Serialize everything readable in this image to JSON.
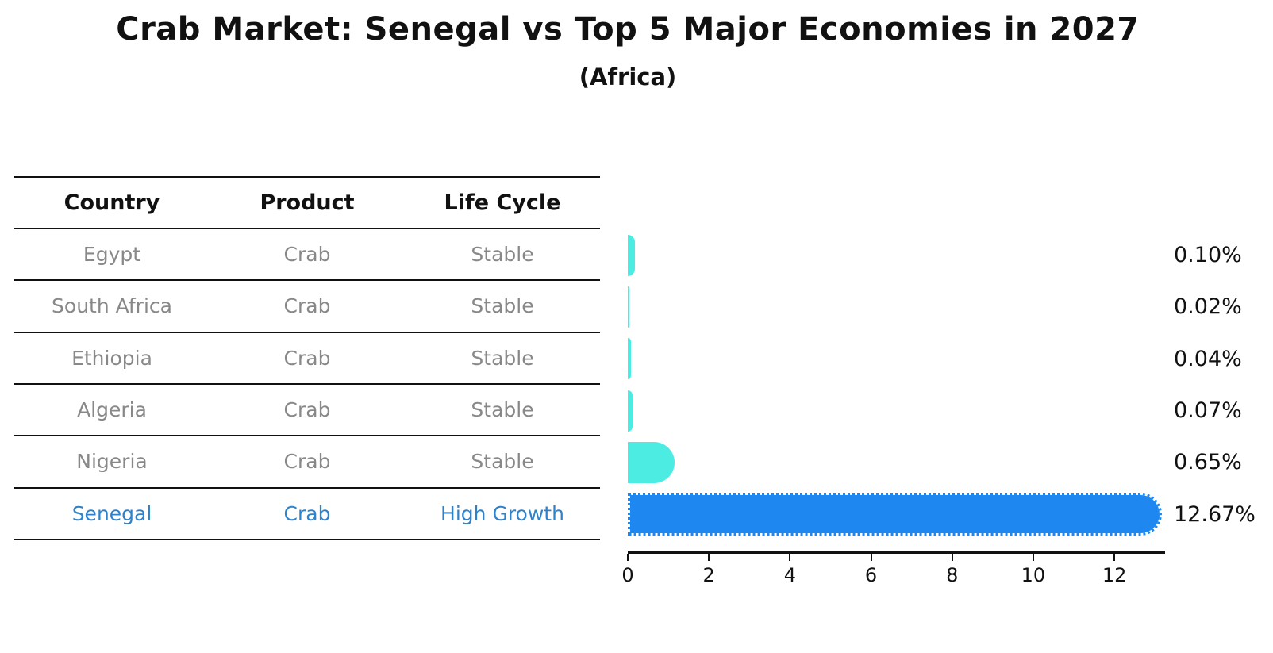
{
  "title": "Crab Market: Senegal vs Top 5 Major Economies in 2027",
  "subtitle": "(Africa)",
  "table": {
    "headers": [
      "Country",
      "Product",
      "Life Cycle"
    ],
    "rows": [
      {
        "country": "Egypt",
        "product": "Crab",
        "life_cycle": "Stable",
        "highlight": false
      },
      {
        "country": "South Africa",
        "product": "Crab",
        "life_cycle": "Stable",
        "highlight": false
      },
      {
        "country": "Ethiopia",
        "product": "Crab",
        "life_cycle": "Stable",
        "highlight": false
      },
      {
        "country": "Algeria",
        "product": "Crab",
        "life_cycle": "Stable",
        "highlight": false
      },
      {
        "country": "Nigeria",
        "product": "Crab",
        "life_cycle": "Stable",
        "highlight": false
      },
      {
        "country": "Senegal",
        "product": "Crab",
        "life_cycle": "High Growth",
        "highlight": true
      }
    ]
  },
  "chart_data": {
    "type": "bar",
    "orientation": "horizontal",
    "title": "Crab Market: Senegal vs Top 5 Major Economies in 2027",
    "subtitle": "(Africa)",
    "xlabel": "",
    "ylabel": "",
    "categories": [
      "Egypt",
      "South Africa",
      "Ethiopia",
      "Algeria",
      "Nigeria",
      "Senegal"
    ],
    "values": [
      0.1,
      0.02,
      0.04,
      0.07,
      0.65,
      12.67
    ],
    "value_labels": [
      "0.10%",
      "0.02%",
      "0.04%",
      "0.07%",
      "0.65%",
      "12.67%"
    ],
    "highlight_index": 5,
    "xlim": [
      0,
      13.25
    ],
    "x_ticks": [
      0,
      2,
      4,
      6,
      8,
      10,
      12
    ],
    "grid": false,
    "legend": false,
    "colors": {
      "bar_default": "#4dece2",
      "bar_highlight": "#1f87f0",
      "highlight_text": "#2e82cc",
      "table_text": "#888888",
      "axis_text": "#111111"
    }
  }
}
